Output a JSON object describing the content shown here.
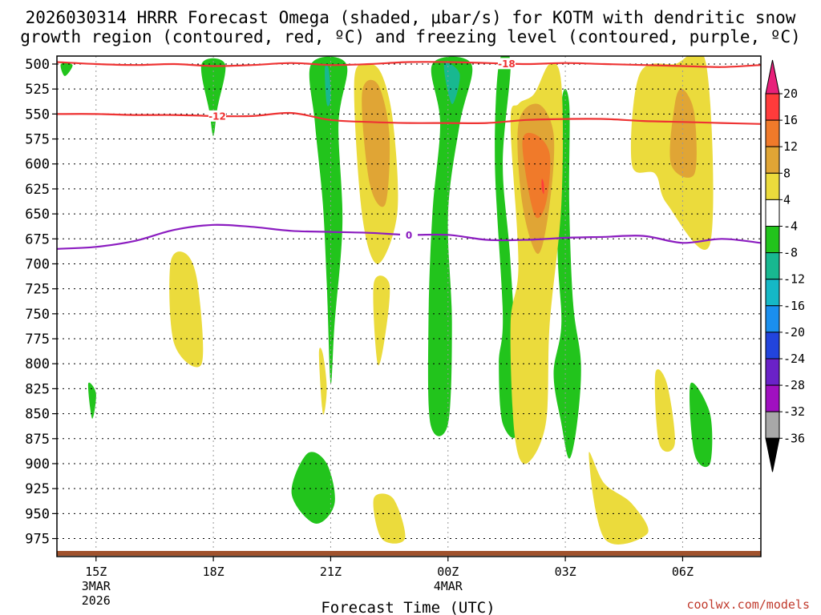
{
  "chart_data": {
    "type": "heatmap",
    "title_line1": "2026030314 HRRR Forecast Omega (shaded, μbar/s) for KOTM with dendritic snow",
    "title_line2": "growth region (contoured, red, ºC) and freezing level (contoured, purple, ºC)",
    "xlabel": "Forecast Time (UTC)",
    "ylabel": "",
    "credit": "coolwx.com/models",
    "x_ticks": [
      {
        "label": "15Z",
        "sub1": "3MAR",
        "sub2": "2026",
        "hour": 0
      },
      {
        "label": "18Z",
        "sub1": "",
        "sub2": "",
        "hour": 3
      },
      {
        "label": "21Z",
        "sub1": "",
        "sub2": "",
        "hour": 6
      },
      {
        "label": "00Z",
        "sub1": "4MAR",
        "sub2": "",
        "hour": 9
      },
      {
        "label": "03Z",
        "sub1": "",
        "sub2": "",
        "hour": 12
      },
      {
        "label": "06Z",
        "sub1": "",
        "sub2": "",
        "hour": 15
      }
    ],
    "x_range_hours": [
      -1,
      17
    ],
    "y_levels_hpa": [
      500,
      525,
      550,
      575,
      600,
      625,
      650,
      675,
      700,
      725,
      750,
      775,
      800,
      825,
      850,
      875,
      900,
      925,
      950,
      975
    ],
    "y_range_hpa": [
      492,
      993
    ],
    "colorbar": {
      "labels": [
        "20",
        "16",
        "12",
        "8",
        "4",
        "-4",
        "-8",
        "-12",
        "-16",
        "-20",
        "-24",
        "-28",
        "-32",
        "-36"
      ],
      "bins": [
        {
          "from": 20,
          "to": 16,
          "color": "#ff3b3b"
        },
        {
          "from": 16,
          "to": 12,
          "color": "#f07a2a"
        },
        {
          "from": 12,
          "to": 8,
          "color": "#e0a535"
        },
        {
          "from": 8,
          "to": 4,
          "color": "#ebdb3c"
        },
        {
          "from": 4,
          "to": -4,
          "color": "#ffffff"
        },
        {
          "from": -4,
          "to": -8,
          "color": "#22c41c"
        },
        {
          "from": -8,
          "to": -12,
          "color": "#18b890"
        },
        {
          "from": -12,
          "to": -16,
          "color": "#15b8c6"
        },
        {
          "from": -16,
          "to": -20,
          "color": "#1a8fee"
        },
        {
          "from": -20,
          "to": -24,
          "color": "#2244dd"
        },
        {
          "from": -24,
          "to": -28,
          "color": "#6a22c8"
        },
        {
          "from": -28,
          "to": -32,
          "color": "#a010c0"
        },
        {
          "from": -32,
          "to": -36,
          "color": "#a8a8a8"
        }
      ],
      "top_arrow_color": "#e8207a",
      "bottom_arrow_color": "#000000"
    },
    "shading_regions": [
      {
        "name": "green-a",
        "level": -6,
        "color": "#22c41c",
        "points": [
          [
            -0.9,
            500
          ],
          [
            -0.8,
            512
          ],
          [
            -0.6,
            501
          ]
        ]
      },
      {
        "name": "green-b",
        "level": -6,
        "color": "#22c41c",
        "points": [
          [
            2.7,
            500
          ],
          [
            2.9,
            548
          ],
          [
            3.0,
            572
          ],
          [
            3.1,
            545
          ],
          [
            3.3,
            500
          ]
        ]
      },
      {
        "name": "green-c",
        "level": -6,
        "color": "#22c41c",
        "points": [
          [
            5.5,
            500
          ],
          [
            5.6,
            560
          ],
          [
            5.8,
            640
          ],
          [
            5.9,
            720
          ],
          [
            6.0,
            820
          ],
          [
            6.1,
            760
          ],
          [
            6.3,
            660
          ],
          [
            6.2,
            560
          ],
          [
            6.4,
            500
          ]
        ]
      },
      {
        "name": "teal-c",
        "level": -10,
        "color": "#18b890",
        "points": [
          [
            5.85,
            505
          ],
          [
            5.9,
            540
          ],
          [
            6.0,
            535
          ],
          [
            5.95,
            505
          ]
        ]
      },
      {
        "name": "green-d",
        "level": -6,
        "color": "#22c41c",
        "points": [
          [
            8.6,
            500
          ],
          [
            8.8,
            560
          ],
          [
            8.6,
            650
          ],
          [
            8.5,
            760
          ],
          [
            8.55,
            860
          ],
          [
            9.0,
            860
          ],
          [
            9.1,
            760
          ],
          [
            9.0,
            650
          ],
          [
            9.3,
            560
          ],
          [
            9.6,
            500
          ]
        ]
      },
      {
        "name": "teal-d",
        "level": -10,
        "color": "#18b890",
        "points": [
          [
            8.9,
            500
          ],
          [
            9.1,
            540
          ],
          [
            9.3,
            510
          ]
        ]
      },
      {
        "name": "green-e",
        "level": -6,
        "color": "#22c41c",
        "points": [
          [
            10.3,
            500
          ],
          [
            10.2,
            600
          ],
          [
            10.4,
            750
          ],
          [
            10.3,
            800
          ],
          [
            10.4,
            860
          ],
          [
            10.8,
            860
          ],
          [
            10.6,
            700
          ],
          [
            10.4,
            600
          ],
          [
            10.6,
            500
          ]
        ]
      },
      {
        "name": "green-f",
        "level": -6,
        "color": "#22c41c",
        "points": [
          [
            11.9,
            540
          ],
          [
            11.8,
            680
          ],
          [
            11.9,
            760
          ],
          [
            11.7,
            810
          ],
          [
            11.9,
            860
          ],
          [
            12.1,
            895
          ],
          [
            12.3,
            860
          ],
          [
            12.4,
            800
          ],
          [
            12.2,
            740
          ],
          [
            12.1,
            640
          ],
          [
            12.1,
            540
          ]
        ]
      },
      {
        "name": "green-g",
        "level": -6,
        "color": "#22c41c",
        "points": [
          [
            5.0,
            930
          ],
          [
            5.6,
            960
          ],
          [
            6.1,
            940
          ],
          [
            5.9,
            900
          ],
          [
            5.4,
            890
          ]
        ]
      },
      {
        "name": "green-h",
        "level": -6,
        "color": "#22c41c",
        "points": [
          [
            -0.2,
            820
          ],
          [
            -0.1,
            855
          ],
          [
            0.0,
            830
          ]
        ]
      },
      {
        "name": "green-i",
        "level": -6,
        "color": "#22c41c",
        "points": [
          [
            15.2,
            820
          ],
          [
            15.7,
            850
          ],
          [
            15.7,
            900
          ],
          [
            15.3,
            890
          ]
        ]
      },
      {
        "name": "yellow-1",
        "level": 6,
        "color": "#ebdb3c",
        "points": [
          [
            6.6,
            520
          ],
          [
            6.8,
            650
          ],
          [
            7.2,
            700
          ],
          [
            7.7,
            650
          ],
          [
            7.6,
            560
          ],
          [
            7.3,
            510
          ],
          [
            6.9,
            500
          ]
        ]
      },
      {
        "name": "orange-1",
        "level": 10,
        "color": "#e0a535",
        "points": [
          [
            6.8,
            530
          ],
          [
            7.0,
            620
          ],
          [
            7.4,
            640
          ],
          [
            7.5,
            570
          ],
          [
            7.2,
            520
          ]
        ]
      },
      {
        "name": "yellow-2",
        "level": 6,
        "color": "#ebdb3c",
        "points": [
          [
            10.6,
            560
          ],
          [
            10.8,
            700
          ],
          [
            10.6,
            760
          ],
          [
            10.7,
            870
          ],
          [
            11.0,
            900
          ],
          [
            11.5,
            860
          ],
          [
            11.6,
            760
          ],
          [
            11.9,
            640
          ],
          [
            11.9,
            520
          ],
          [
            11.6,
            500
          ],
          [
            11.2,
            530
          ],
          [
            10.8,
            540
          ]
        ]
      },
      {
        "name": "orange-2",
        "level": 10,
        "color": "#e0a535",
        "points": [
          [
            10.8,
            560
          ],
          [
            10.9,
            640
          ],
          [
            11.3,
            690
          ],
          [
            11.6,
            640
          ],
          [
            11.7,
            570
          ],
          [
            11.3,
            540
          ]
        ]
      },
      {
        "name": "dkorange-2",
        "level": 14,
        "color": "#f07a2a",
        "points": [
          [
            10.9,
            580
          ],
          [
            11.2,
            650
          ],
          [
            11.5,
            640
          ],
          [
            11.6,
            590
          ],
          [
            11.2,
            570
          ]
        ]
      },
      {
        "name": "red-2",
        "level": 18,
        "color": "#ff3b3b",
        "points": [
          [
            11.4,
            615
          ],
          [
            11.45,
            620
          ],
          [
            11.45,
            630
          ],
          [
            11.4,
            625
          ]
        ]
      },
      {
        "name": "yellow-3",
        "level": 6,
        "color": "#ebdb3c",
        "points": [
          [
            13.9,
            510
          ],
          [
            13.7,
            600
          ],
          [
            14.3,
            610
          ],
          [
            14.6,
            640
          ],
          [
            15.7,
            680
          ],
          [
            15.6,
            500
          ],
          [
            14.8,
            500
          ]
        ]
      },
      {
        "name": "orange-3",
        "level": 10,
        "color": "#e0a535",
        "points": [
          [
            14.8,
            540
          ],
          [
            14.7,
            600
          ],
          [
            15.3,
            610
          ],
          [
            15.3,
            550
          ],
          [
            15.0,
            525
          ]
        ]
      },
      {
        "name": "yellow-4",
        "level": 6,
        "color": "#ebdb3c",
        "points": [
          [
            1.9,
            700
          ],
          [
            2.0,
            780
          ],
          [
            2.7,
            800
          ],
          [
            2.6,
            720
          ],
          [
            2.3,
            690
          ]
        ]
      },
      {
        "name": "yellow-5",
        "level": 6,
        "color": "#ebdb3c",
        "points": [
          [
            7.1,
            720
          ],
          [
            7.2,
            800
          ],
          [
            7.4,
            770
          ],
          [
            7.5,
            720
          ]
        ]
      },
      {
        "name": "yellow-6",
        "level": 6,
        "color": "#ebdb3c",
        "points": [
          [
            12.6,
            890
          ],
          [
            13.0,
            975
          ],
          [
            14.1,
            970
          ],
          [
            13.7,
            940
          ],
          [
            13.0,
            920
          ]
        ]
      },
      {
        "name": "yellow-7",
        "level": 6,
        "color": "#ebdb3c",
        "points": [
          [
            7.1,
            935
          ],
          [
            7.3,
            975
          ],
          [
            7.9,
            975
          ],
          [
            7.6,
            935
          ]
        ]
      },
      {
        "name": "yellow-8",
        "level": 6,
        "color": "#ebdb3c",
        "points": [
          [
            5.7,
            790
          ],
          [
            5.8,
            850
          ],
          [
            5.9,
            825
          ],
          [
            5.8,
            790
          ]
        ]
      },
      {
        "name": "yellow-9",
        "level": 6,
        "color": "#ebdb3c",
        "points": [
          [
            14.3,
            810
          ],
          [
            14.4,
            880
          ],
          [
            14.8,
            880
          ],
          [
            14.6,
            820
          ]
        ]
      }
    ],
    "contours": [
      {
        "name": "dgz-upper",
        "label": "-18",
        "label_x": 10.5,
        "color": "#ee3333",
        "x": [
          -1,
          0,
          1,
          2,
          3,
          4,
          5,
          6,
          7,
          8,
          9,
          10,
          11,
          12,
          13,
          14,
          15,
          16,
          17
        ],
        "y": [
          498,
          500,
          501,
          500,
          502,
          501,
          499,
          501,
          500,
          498,
          498,
          499,
          500,
          499,
          500,
          501,
          502,
          503,
          501
        ]
      },
      {
        "name": "dgz-lower",
        "label": "-12",
        "label_x": 3.1,
        "color": "#ee3333",
        "x": [
          -1,
          0,
          1,
          2,
          3,
          4,
          5,
          6,
          7,
          8,
          9,
          10,
          11,
          12,
          13,
          14,
          15,
          16,
          17
        ],
        "y": [
          550,
          550,
          551,
          551,
          552,
          552,
          549,
          556,
          558,
          559,
          559,
          559,
          556,
          555,
          555,
          557,
          558,
          559,
          560
        ]
      },
      {
        "name": "freezing-level",
        "label": "0",
        "label_x": 8.0,
        "color": "#8b1cc0",
        "x": [
          -1,
          0,
          1,
          2,
          3,
          4,
          5,
          6,
          7,
          8,
          9,
          10,
          11,
          12,
          13,
          14,
          15,
          16,
          17
        ],
        "y": [
          685,
          683,
          677,
          666,
          661,
          663,
          667,
          668,
          669,
          671,
          671,
          676,
          676,
          674,
          673,
          672,
          679,
          675,
          679
        ]
      }
    ]
  }
}
